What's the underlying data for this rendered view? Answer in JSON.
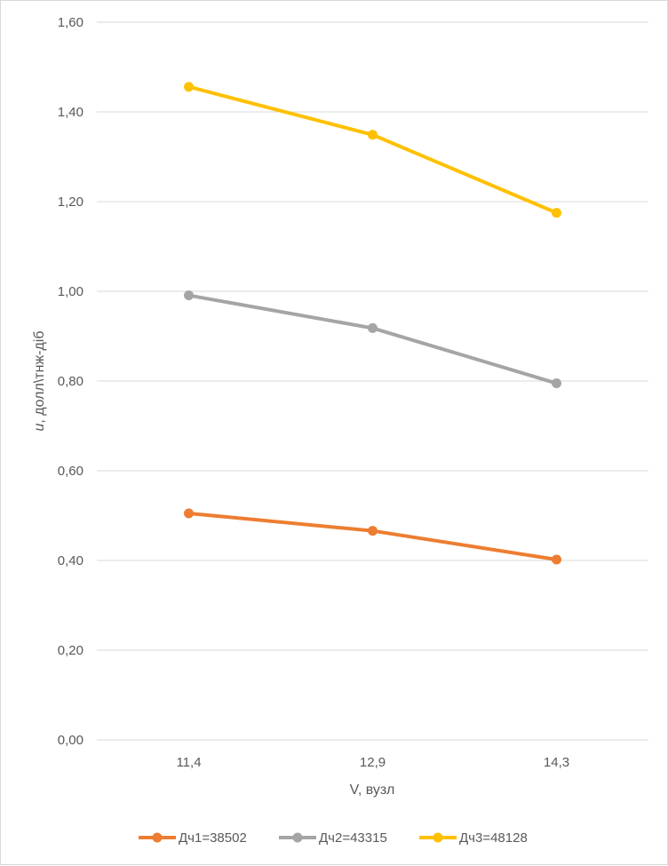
{
  "chart_data": {
    "type": "line",
    "title": "",
    "xlabel": "V, вузл",
    "ylabel_italic": "u",
    "ylabel_rest": ", долл\\тнж-діб",
    "categories": [
      "11,4",
      "12,9",
      "14,3"
    ],
    "ylim": [
      0,
      1.6
    ],
    "yticks": [
      0,
      0.2,
      0.4,
      0.6,
      0.8,
      1.0,
      1.2,
      1.4,
      1.6
    ],
    "ytick_labels": [
      "0,00",
      "0,20",
      "0,40",
      "0,60",
      "0,80",
      "1,00",
      "1,20",
      "1,40",
      "1,60"
    ],
    "grid": true,
    "legend_position": "bottom",
    "series": [
      {
        "name": "Дч1=38502",
        "color": "#ED7D31",
        "values": [
          0.505,
          0.466,
          0.402
        ]
      },
      {
        "name": "Дч2=43315",
        "color": "#A5A5A5",
        "values": [
          0.991,
          0.918,
          0.795
        ]
      },
      {
        "name": "Дч3=48128",
        "color": "#FFC000",
        "values": [
          1.456,
          1.349,
          1.175
        ]
      }
    ]
  }
}
